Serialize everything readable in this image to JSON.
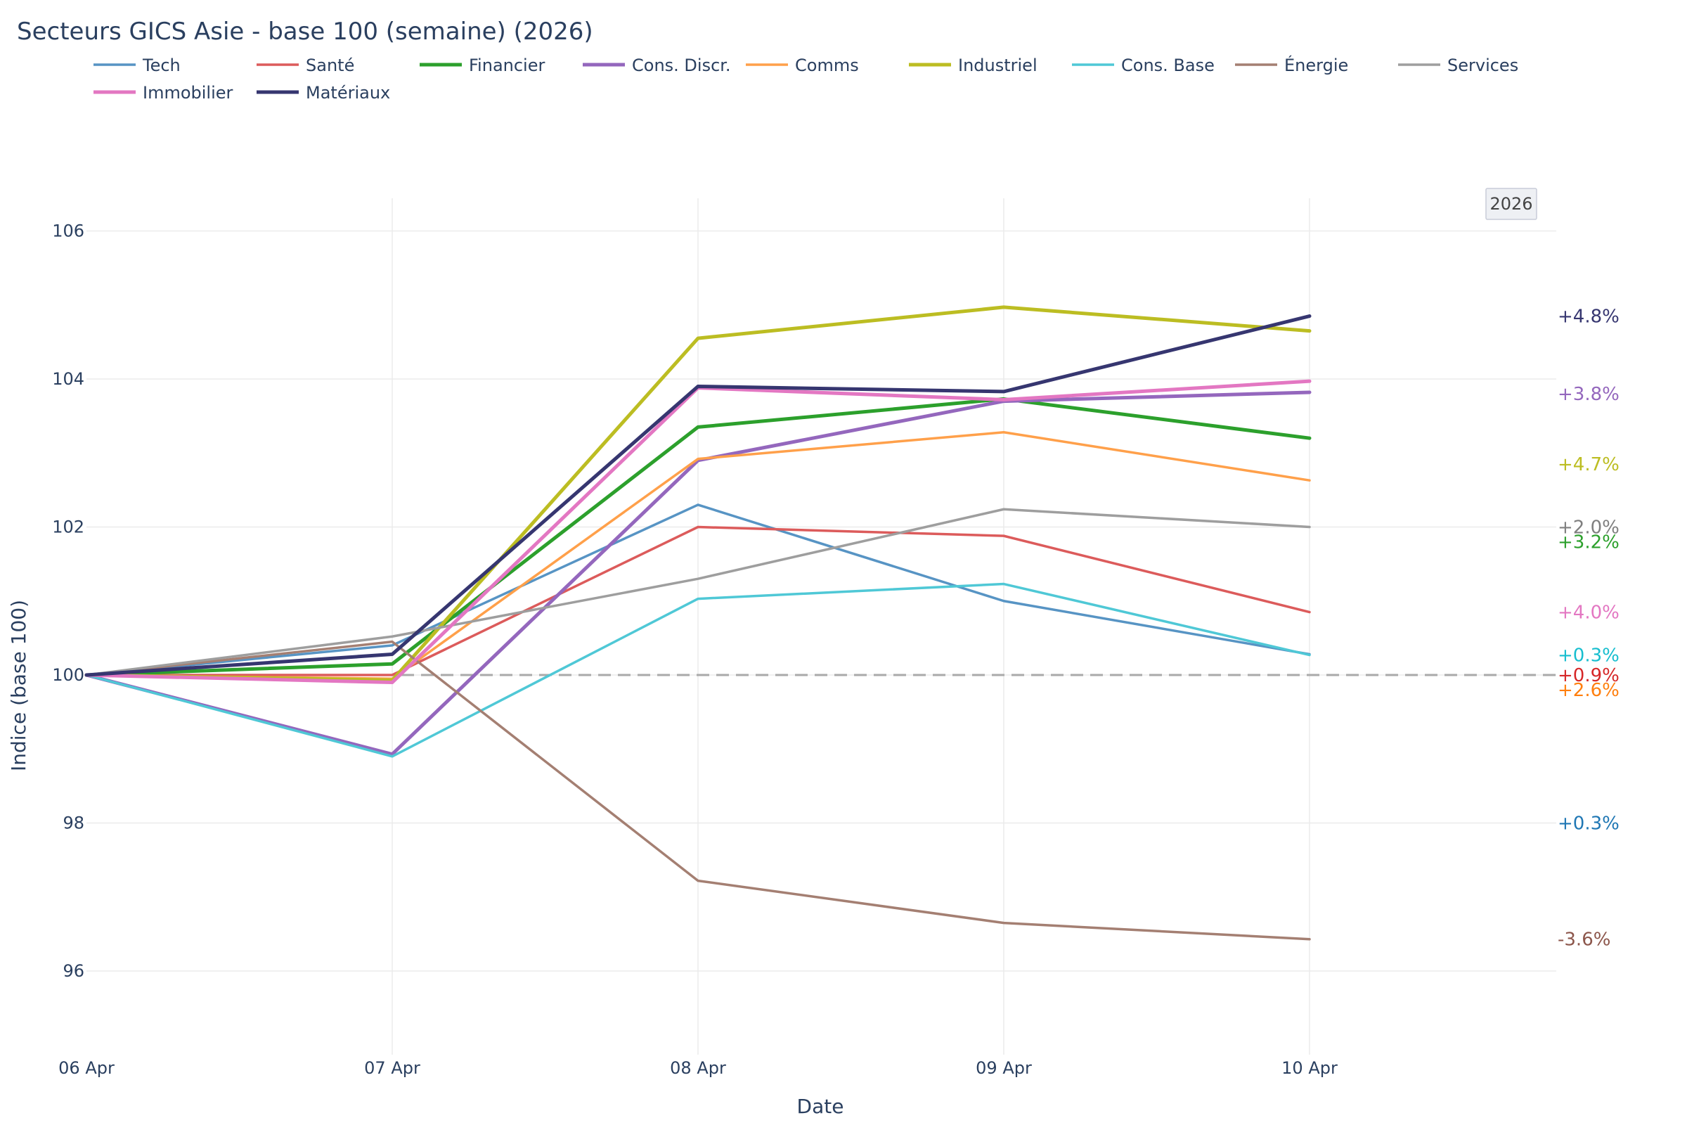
{
  "chart_data": {
    "type": "line",
    "title": "Secteurs GICS Asie - base 100 (semaine) (2026)",
    "xlabel": "Date",
    "ylabel": "Indice (base 100)",
    "x": [
      "06 Apr",
      "07 Apr",
      "08 Apr",
      "09 Apr",
      "10 Apr"
    ],
    "ylim": [
      94.9,
      106.5
    ],
    "yticks": [
      96,
      98,
      100,
      102,
      104,
      106
    ],
    "grid": true,
    "legend": "top",
    "reference_line": {
      "value": 100,
      "style": "dashed",
      "color": "#aaaaaa"
    },
    "badge": "2026",
    "series": [
      {
        "name": "Tech",
        "color": "#5794c4",
        "bold": false,
        "values": [
          100,
          100.4,
          102.3,
          101.0,
          100.28
        ],
        "end_label": "+0.3%",
        "end_label_color": "#1f77b4",
        "end_label_y": 98.0
      },
      {
        "name": "Santé",
        "color": "#dc5b5b",
        "bold": false,
        "values": [
          100,
          100.0,
          102.0,
          101.88,
          100.85
        ],
        "end_label": "+0.9%",
        "end_label_color": "#d62728",
        "end_label_y": 100.0
      },
      {
        "name": "Financier",
        "color": "#2ca02c",
        "bold": true,
        "values": [
          100,
          100.15,
          103.35,
          103.73,
          103.2
        ],
        "end_label": "+3.2%",
        "end_label_color": "#2ca02c",
        "end_label_y": 101.8
      },
      {
        "name": "Cons. Discr.",
        "color": "#9467bd",
        "bold": true,
        "values": [
          100,
          98.93,
          102.9,
          103.7,
          103.82
        ],
        "end_label": "+3.8%",
        "end_label_color": "#9467bd",
        "end_label_y": 103.8
      },
      {
        "name": "Comms",
        "color": "#ffa04a",
        "bold": false,
        "values": [
          100,
          99.95,
          102.92,
          103.28,
          102.63
        ],
        "end_label": "+2.6%",
        "end_label_color": "#ff7f0e",
        "end_label_y": 99.8
      },
      {
        "name": "Industriel",
        "color": "#bcbd22",
        "bold": true,
        "values": [
          100,
          99.93,
          104.55,
          104.97,
          104.65
        ],
        "end_label": "+4.7%",
        "end_label_color": "#bcbd22",
        "end_label_y": 102.85
      },
      {
        "name": "Cons. Base",
        "color": "#4fc8d6",
        "bold": false,
        "values": [
          100,
          98.9,
          101.03,
          101.23,
          100.27
        ],
        "end_label": "+0.3%",
        "end_label_color": "#17becf",
        "end_label_y": 100.27
      },
      {
        "name": "Énergie",
        "color": "#a47f72",
        "bold": false,
        "values": [
          100,
          100.45,
          97.22,
          96.65,
          96.43
        ],
        "end_label": "-3.6%",
        "end_label_color": "#8c564b",
        "end_label_y": 96.43
      },
      {
        "name": "Services",
        "color": "#9e9e9e",
        "bold": false,
        "values": [
          100,
          100.52,
          101.3,
          102.24,
          102.0
        ],
        "end_label": "+2.0%",
        "end_label_color": "#7f7f7f",
        "end_label_y": 102.0
      },
      {
        "name": "Immobilier",
        "color": "#e377c2",
        "bold": true,
        "values": [
          100,
          99.9,
          103.88,
          103.72,
          103.97
        ],
        "end_label": "+4.0%",
        "end_label_color": "#e377c2",
        "end_label_y": 100.85
      },
      {
        "name": "Matériaux",
        "color": "#363670",
        "bold": true,
        "values": [
          100,
          100.28,
          103.9,
          103.83,
          104.85
        ],
        "end_label": "+4.8%",
        "end_label_color": "#363670",
        "end_label_y": 104.85
      }
    ]
  }
}
